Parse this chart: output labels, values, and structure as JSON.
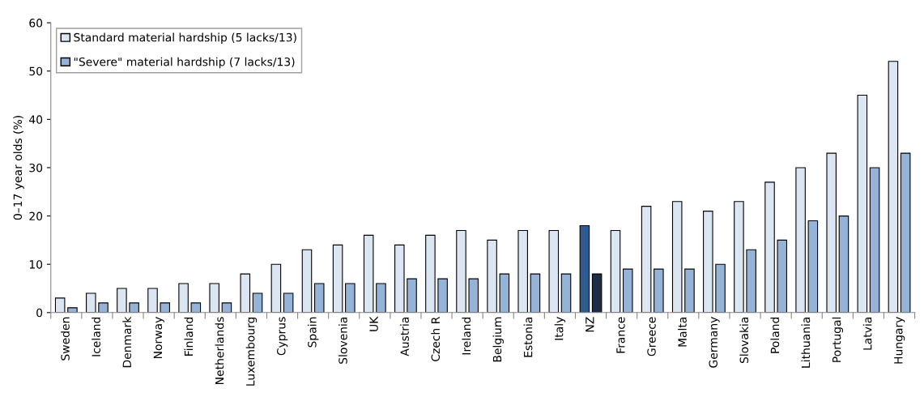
{
  "chart_data": {
    "type": "bar",
    "ylabel": "0–17 year olds (%)",
    "categories": [
      "Sweden",
      "Iceland",
      "Denmark",
      "Norway",
      "Finland",
      "Netherlands",
      "Luxembourg",
      "Cyprus",
      "Spain",
      "Slovenia",
      "UK",
      "Austria",
      "Czech R",
      "Ireland",
      "Belgium",
      "Estonia",
      "Italy",
      "NZ",
      "France",
      "Greece",
      "Malta",
      "Germany",
      "Slovakia",
      "Poland",
      "Lithuania",
      "Portugal",
      "Latvia",
      "Hungary"
    ],
    "series": [
      {
        "name": "Standard material hardship (5 lacks/13)",
        "color": "#dce6f2",
        "colors": [
          "#dce6f2",
          "#dce6f2",
          "#dce6f2",
          "#dce6f2",
          "#dce6f2",
          "#dce6f2",
          "#dce6f2",
          "#dce6f2",
          "#dce6f2",
          "#dce6f2",
          "#dce6f2",
          "#dce6f2",
          "#dce6f2",
          "#dce6f2",
          "#dce6f2",
          "#dce6f2",
          "#dce6f2",
          "#2f5b8f",
          "#dce6f2",
          "#dce6f2",
          "#dce6f2",
          "#dce6f2",
          "#dce6f2",
          "#dce6f2",
          "#dce6f2",
          "#dce6f2",
          "#dce6f2",
          "#dce6f2"
        ],
        "values": [
          3,
          4,
          5,
          5,
          6,
          6,
          8,
          10,
          13,
          14,
          16,
          14,
          16,
          17,
          15,
          17,
          17,
          18,
          17,
          22,
          23,
          21,
          23,
          27,
          30,
          33,
          45,
          52
        ]
      },
      {
        "name": "\"Severe\" material hardship (7 lacks/13)",
        "color": "#95b3d7",
        "colors": [
          "#95b3d7",
          "#95b3d7",
          "#95b3d7",
          "#95b3d7",
          "#95b3d7",
          "#95b3d7",
          "#95b3d7",
          "#95b3d7",
          "#95b3d7",
          "#95b3d7",
          "#95b3d7",
          "#95b3d7",
          "#95b3d7",
          "#95b3d7",
          "#95b3d7",
          "#95b3d7",
          "#95b3d7",
          "#1c2d45",
          "#95b3d7",
          "#95b3d7",
          "#95b3d7",
          "#95b3d7",
          "#95b3d7",
          "#95b3d7",
          "#95b3d7",
          "#95b3d7",
          "#95b3d7",
          "#95b3d7"
        ],
        "values": [
          1,
          2,
          2,
          2,
          2,
          2,
          4,
          4,
          6,
          6,
          6,
          7,
          7,
          7,
          8,
          8,
          8,
          8,
          9,
          9,
          9,
          10,
          13,
          15,
          19,
          20,
          30,
          33
        ]
      }
    ],
    "ylim": [
      0,
      60
    ],
    "yticks": [
      0,
      10,
      20,
      30,
      40,
      50,
      60
    ],
    "grid": false,
    "legend": "top left"
  }
}
